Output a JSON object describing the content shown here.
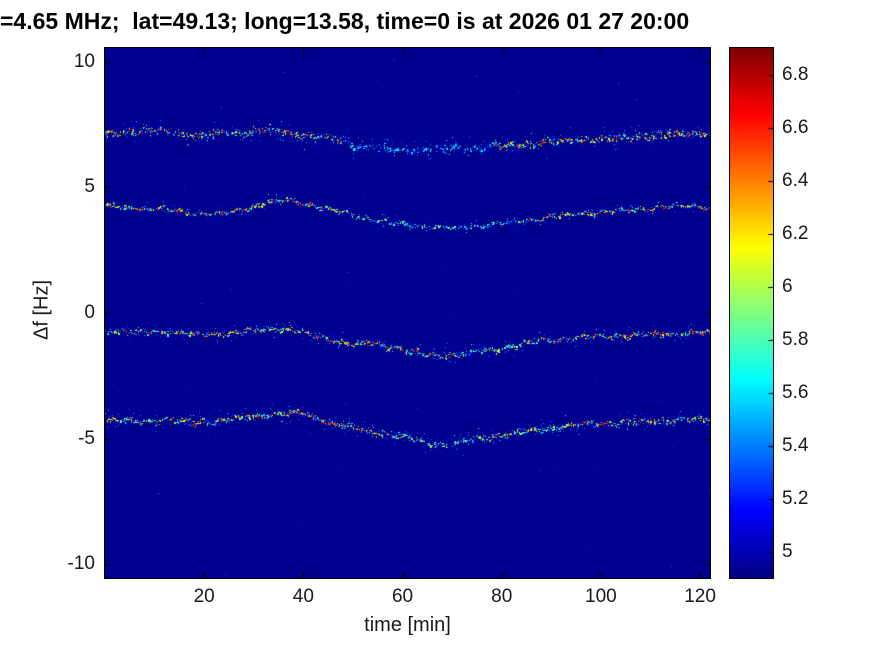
{
  "chart_data": {
    "type": "heatmap",
    "title": "=4.65 MHz;  lat=49.13; long=13.58, time=0 is at 2026 01 27 20:00",
    "xlabel": "time [min]",
    "ylabel": "Δf [Hz]",
    "xlim": [
      0,
      122
    ],
    "ylim": [
      -10.55,
      10.55
    ],
    "x_ticks": [
      20,
      40,
      60,
      80,
      100,
      120
    ],
    "y_ticks": [
      10,
      5,
      0,
      -5,
      -10
    ],
    "grid": false,
    "colormap": "jet",
    "color_range": [
      4.9,
      6.9
    ],
    "background_value": 4.93,
    "colorbar_ticks": [
      6.8,
      6.6,
      6.4,
      6.2,
      6,
      5.8,
      5.6,
      5.4,
      5.2,
      5
    ],
    "legend_position": "colorbar-right",
    "series": [
      {
        "name": "trace-plus7hz",
        "t": [
          0,
          5,
          9,
          13,
          17,
          20,
          24,
          28,
          31,
          34,
          38,
          42,
          46,
          50,
          54,
          58,
          62,
          66,
          70,
          75,
          80,
          85,
          90,
          95,
          100,
          105,
          110,
          114,
          118,
          122
        ],
        "f": [
          7.1,
          7.25,
          7.35,
          7.2,
          7.1,
          7.05,
          7.2,
          7.15,
          7.35,
          7.3,
          7.1,
          7.05,
          6.95,
          6.75,
          6.6,
          6.5,
          6.5,
          6.55,
          6.6,
          6.6,
          6.65,
          6.75,
          6.85,
          6.9,
          6.95,
          7.0,
          7.1,
          7.15,
          7.15,
          7.2
        ],
        "seed": 7,
        "spread": 0.15,
        "noise": 0.06,
        "scatter": 0.55,
        "scatter_range": 0.5,
        "density": 2.2,
        "dim": [
          [
            48,
            78,
            0.5
          ]
        ]
      },
      {
        "name": "trace-plus4hz",
        "t": [
          0,
          6,
          12,
          18,
          23,
          28,
          33,
          37,
          41,
          45,
          50,
          55,
          60,
          65,
          70,
          75,
          80,
          85,
          90,
          95,
          100,
          105,
          110,
          115,
          122
        ],
        "f": [
          4.25,
          4.2,
          4.15,
          4.0,
          3.95,
          4.15,
          4.45,
          4.5,
          4.35,
          4.15,
          3.9,
          3.7,
          3.55,
          3.45,
          3.4,
          3.5,
          3.6,
          3.7,
          3.85,
          3.95,
          4.05,
          4.1,
          4.2,
          4.25,
          4.25
        ],
        "seed": 13,
        "spread": 0.07,
        "noise": 0.04,
        "scatter": 0.3,
        "scatter_range": 0.3,
        "density": 1.4,
        "dim": [
          [
            50,
            85,
            0.7
          ]
        ]
      },
      {
        "name": "trace-minus1hz",
        "t": [
          0,
          6,
          12,
          18,
          24,
          30,
          35,
          40,
          45,
          50,
          54,
          58,
          62,
          66,
          70,
          74,
          78,
          82,
          86,
          90,
          95,
          100,
          105,
          110,
          116,
          122
        ],
        "f": [
          -0.7,
          -0.75,
          -0.7,
          -0.85,
          -0.8,
          -0.65,
          -0.6,
          -0.75,
          -1.05,
          -1.25,
          -1.2,
          -1.35,
          -1.55,
          -1.7,
          -1.65,
          -1.55,
          -1.45,
          -1.3,
          -1.15,
          -1.05,
          -0.95,
          -0.9,
          -0.88,
          -0.85,
          -0.8,
          -0.75
        ],
        "seed": 21,
        "spread": 0.09,
        "noise": 0.05,
        "scatter": 0.45,
        "scatter_range": 0.4,
        "density": 1.7,
        "dim": [
          [
            70,
            88,
            0.75
          ]
        ]
      },
      {
        "name": "trace-minus4hz",
        "t": [
          0,
          6,
          12,
          18,
          24,
          30,
          35,
          40,
          44,
          48,
          52,
          56,
          60,
          64,
          68,
          72,
          76,
          80,
          85,
          90,
          95,
          100,
          105,
          110,
          116,
          122
        ],
        "f": [
          -4.25,
          -4.3,
          -4.25,
          -4.35,
          -4.25,
          -4.1,
          -3.95,
          -4.0,
          -4.25,
          -4.5,
          -4.65,
          -4.75,
          -4.9,
          -5.1,
          -5.25,
          -5.1,
          -4.95,
          -4.85,
          -4.7,
          -4.55,
          -4.45,
          -4.4,
          -4.35,
          -4.3,
          -4.25,
          -4.2
        ],
        "seed": 31,
        "spread": 0.11,
        "noise": 0.05,
        "scatter": 0.5,
        "scatter_range": 0.45,
        "density": 1.9,
        "dim": [
          [
            58,
            75,
            0.8
          ]
        ]
      }
    ]
  }
}
